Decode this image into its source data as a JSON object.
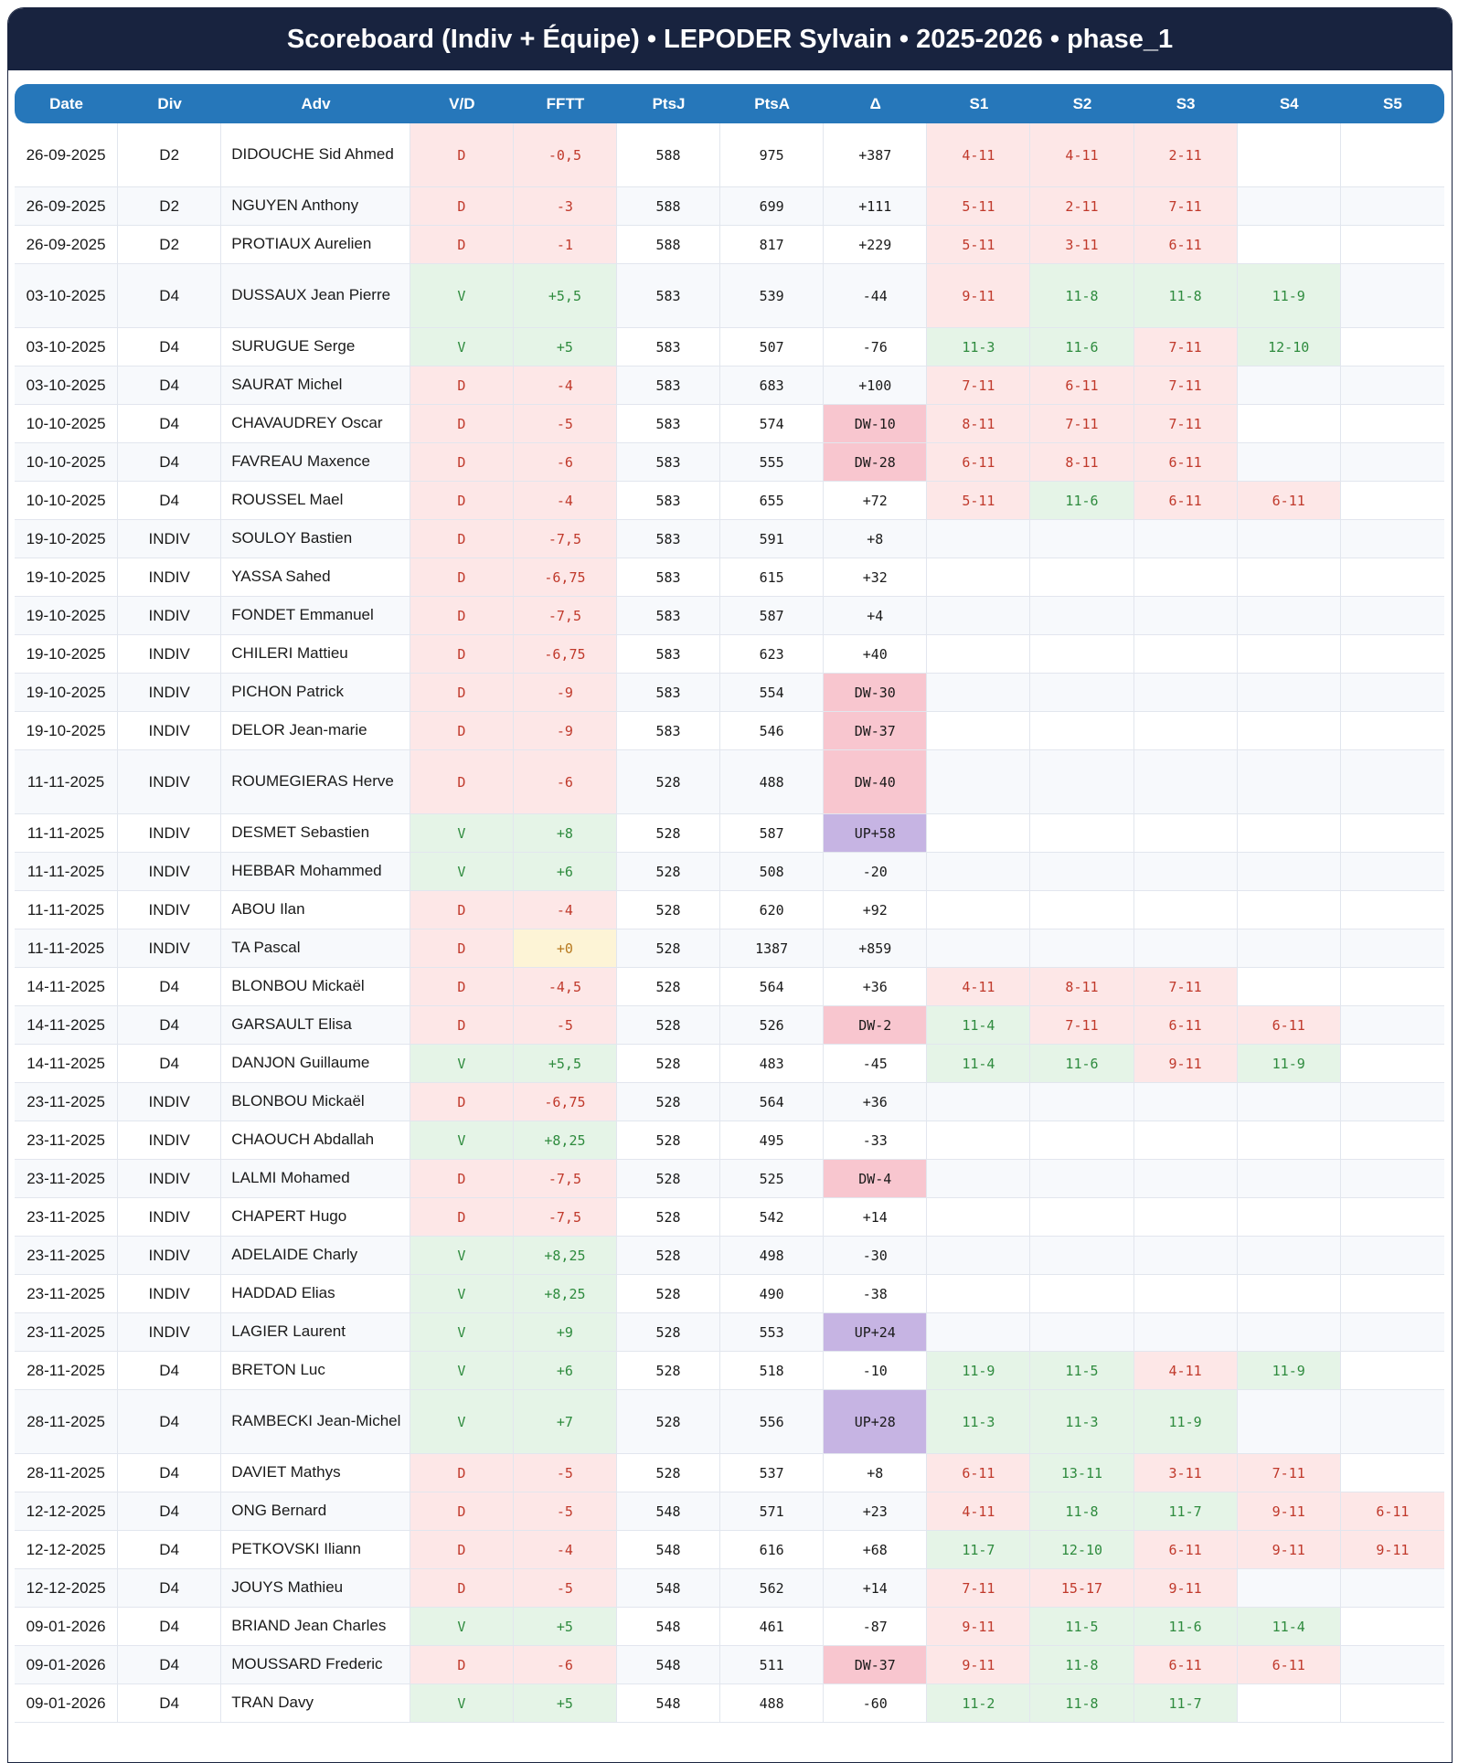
{
  "title": "Scoreboard (Indiv + Équipe) • LEPODER Sylvain • 2025-2026 • phase_1",
  "colors": {
    "title_bg": "#18233f",
    "header_bg": "#2677ba",
    "loss_bg": "#fde7e7",
    "win_bg": "#e5f4e7",
    "dw_bg": "#f8c6cf",
    "up_bg": "#c6b4e3",
    "zero_bg": "#fdf4d6"
  },
  "columns": [
    "Date",
    "Div",
    "Adv",
    "V/D",
    "FFTT",
    "PtsJ",
    "PtsA",
    "Δ",
    "S1",
    "S2",
    "S3",
    "S4",
    "S5"
  ],
  "rows": [
    {
      "date": "26-09-2025",
      "div": "D2",
      "adv": "DIDOUCHE Sid Ahmed",
      "vd": "D",
      "fftt": "-0,5",
      "ptsj": "588",
      "ptsa": "975",
      "delta": "+387",
      "sets": [
        "4-11",
        "4-11",
        "2-11",
        "",
        ""
      ]
    },
    {
      "date": "26-09-2025",
      "div": "D2",
      "adv": "NGUYEN Anthony",
      "vd": "D",
      "fftt": "-3",
      "ptsj": "588",
      "ptsa": "699",
      "delta": "+111",
      "sets": [
        "5-11",
        "2-11",
        "7-11",
        "",
        ""
      ]
    },
    {
      "date": "26-09-2025",
      "div": "D2",
      "adv": "PROTIAUX Aurelien",
      "vd": "D",
      "fftt": "-1",
      "ptsj": "588",
      "ptsa": "817",
      "delta": "+229",
      "sets": [
        "5-11",
        "3-11",
        "6-11",
        "",
        ""
      ]
    },
    {
      "date": "03-10-2025",
      "div": "D4",
      "adv": "DUSSAUX Jean Pierre",
      "vd": "V",
      "fftt": "+5,5",
      "ptsj": "583",
      "ptsa": "539",
      "delta": "-44",
      "sets": [
        "9-11",
        "11-8",
        "11-8",
        "11-9",
        ""
      ]
    },
    {
      "date": "03-10-2025",
      "div": "D4",
      "adv": "SURUGUE Serge",
      "vd": "V",
      "fftt": "+5",
      "ptsj": "583",
      "ptsa": "507",
      "delta": "-76",
      "sets": [
        "11-3",
        "11-6",
        "7-11",
        "12-10",
        ""
      ]
    },
    {
      "date": "03-10-2025",
      "div": "D4",
      "adv": "SAURAT Michel",
      "vd": "D",
      "fftt": "-4",
      "ptsj": "583",
      "ptsa": "683",
      "delta": "+100",
      "sets": [
        "7-11",
        "6-11",
        "7-11",
        "",
        ""
      ]
    },
    {
      "date": "10-10-2025",
      "div": "D4",
      "adv": "CHAVAUDREY Oscar",
      "vd": "D",
      "fftt": "-5",
      "ptsj": "583",
      "ptsa": "574",
      "delta": "DW-10",
      "sets": [
        "8-11",
        "7-11",
        "7-11",
        "",
        ""
      ]
    },
    {
      "date": "10-10-2025",
      "div": "D4",
      "adv": "FAVREAU Maxence",
      "vd": "D",
      "fftt": "-6",
      "ptsj": "583",
      "ptsa": "555",
      "delta": "DW-28",
      "sets": [
        "6-11",
        "8-11",
        "6-11",
        "",
        ""
      ]
    },
    {
      "date": "10-10-2025",
      "div": "D4",
      "adv": "ROUSSEL Mael",
      "vd": "D",
      "fftt": "-4",
      "ptsj": "583",
      "ptsa": "655",
      "delta": "+72",
      "sets": [
        "5-11",
        "11-6",
        "6-11",
        "6-11",
        ""
      ]
    },
    {
      "date": "19-10-2025",
      "div": "INDIV",
      "adv": "SOULOY Bastien",
      "vd": "D",
      "fftt": "-7,5",
      "ptsj": "583",
      "ptsa": "591",
      "delta": "+8",
      "sets": [
        "",
        "",
        "",
        "",
        ""
      ]
    },
    {
      "date": "19-10-2025",
      "div": "INDIV",
      "adv": "YASSA Sahed",
      "vd": "D",
      "fftt": "-6,75",
      "ptsj": "583",
      "ptsa": "615",
      "delta": "+32",
      "sets": [
        "",
        "",
        "",
        "",
        ""
      ]
    },
    {
      "date": "19-10-2025",
      "div": "INDIV",
      "adv": "FONDET Emmanuel",
      "vd": "D",
      "fftt": "-7,5",
      "ptsj": "583",
      "ptsa": "587",
      "delta": "+4",
      "sets": [
        "",
        "",
        "",
        "",
        ""
      ]
    },
    {
      "date": "19-10-2025",
      "div": "INDIV",
      "adv": "CHILERI Mattieu",
      "vd": "D",
      "fftt": "-6,75",
      "ptsj": "583",
      "ptsa": "623",
      "delta": "+40",
      "sets": [
        "",
        "",
        "",
        "",
        ""
      ]
    },
    {
      "date": "19-10-2025",
      "div": "INDIV",
      "adv": "PICHON Patrick",
      "vd": "D",
      "fftt": "-9",
      "ptsj": "583",
      "ptsa": "554",
      "delta": "DW-30",
      "sets": [
        "",
        "",
        "",
        "",
        ""
      ]
    },
    {
      "date": "19-10-2025",
      "div": "INDIV",
      "adv": "DELOR Jean-marie",
      "vd": "D",
      "fftt": "-9",
      "ptsj": "583",
      "ptsa": "546",
      "delta": "DW-37",
      "sets": [
        "",
        "",
        "",
        "",
        ""
      ]
    },
    {
      "date": "11-11-2025",
      "div": "INDIV",
      "adv": "ROUMEGIERAS Herve",
      "vd": "D",
      "fftt": "-6",
      "ptsj": "528",
      "ptsa": "488",
      "delta": "DW-40",
      "sets": [
        "",
        "",
        "",
        "",
        ""
      ]
    },
    {
      "date": "11-11-2025",
      "div": "INDIV",
      "adv": "DESMET Sebastien",
      "vd": "V",
      "fftt": "+8",
      "ptsj": "528",
      "ptsa": "587",
      "delta": "UP+58",
      "sets": [
        "",
        "",
        "",
        "",
        ""
      ]
    },
    {
      "date": "11-11-2025",
      "div": "INDIV",
      "adv": "HEBBAR Mohammed",
      "vd": "V",
      "fftt": "+6",
      "ptsj": "528",
      "ptsa": "508",
      "delta": "-20",
      "sets": [
        "",
        "",
        "",
        "",
        ""
      ]
    },
    {
      "date": "11-11-2025",
      "div": "INDIV",
      "adv": "ABOU Ilan",
      "vd": "D",
      "fftt": "-4",
      "ptsj": "528",
      "ptsa": "620",
      "delta": "+92",
      "sets": [
        "",
        "",
        "",
        "",
        ""
      ]
    },
    {
      "date": "11-11-2025",
      "div": "INDIV",
      "adv": "TA Pascal",
      "vd": "D",
      "fftt": "+0",
      "ptsj": "528",
      "ptsa": "1387",
      "delta": "+859",
      "sets": [
        "",
        "",
        "",
        "",
        ""
      ]
    },
    {
      "date": "14-11-2025",
      "div": "D4",
      "adv": "BLONBOU Mickaël",
      "vd": "D",
      "fftt": "-4,5",
      "ptsj": "528",
      "ptsa": "564",
      "delta": "+36",
      "sets": [
        "4-11",
        "8-11",
        "7-11",
        "",
        ""
      ]
    },
    {
      "date": "14-11-2025",
      "div": "D4",
      "adv": "GARSAULT Elisa",
      "vd": "D",
      "fftt": "-5",
      "ptsj": "528",
      "ptsa": "526",
      "delta": "DW-2",
      "sets": [
        "11-4",
        "7-11",
        "6-11",
        "6-11",
        ""
      ]
    },
    {
      "date": "14-11-2025",
      "div": "D4",
      "adv": "DANJON Guillaume",
      "vd": "V",
      "fftt": "+5,5",
      "ptsj": "528",
      "ptsa": "483",
      "delta": "-45",
      "sets": [
        "11-4",
        "11-6",
        "9-11",
        "11-9",
        ""
      ]
    },
    {
      "date": "23-11-2025",
      "div": "INDIV",
      "adv": "BLONBOU Mickaël",
      "vd": "D",
      "fftt": "-6,75",
      "ptsj": "528",
      "ptsa": "564",
      "delta": "+36",
      "sets": [
        "",
        "",
        "",
        "",
        ""
      ]
    },
    {
      "date": "23-11-2025",
      "div": "INDIV",
      "adv": "CHAOUCH Abdallah",
      "vd": "V",
      "fftt": "+8,25",
      "ptsj": "528",
      "ptsa": "495",
      "delta": "-33",
      "sets": [
        "",
        "",
        "",
        "",
        ""
      ]
    },
    {
      "date": "23-11-2025",
      "div": "INDIV",
      "adv": "LALMI Mohamed",
      "vd": "D",
      "fftt": "-7,5",
      "ptsj": "528",
      "ptsa": "525",
      "delta": "DW-4",
      "sets": [
        "",
        "",
        "",
        "",
        ""
      ]
    },
    {
      "date": "23-11-2025",
      "div": "INDIV",
      "adv": "CHAPERT Hugo",
      "vd": "D",
      "fftt": "-7,5",
      "ptsj": "528",
      "ptsa": "542",
      "delta": "+14",
      "sets": [
        "",
        "",
        "",
        "",
        ""
      ]
    },
    {
      "date": "23-11-2025",
      "div": "INDIV",
      "adv": "ADELAIDE Charly",
      "vd": "V",
      "fftt": "+8,25",
      "ptsj": "528",
      "ptsa": "498",
      "delta": "-30",
      "sets": [
        "",
        "",
        "",
        "",
        ""
      ]
    },
    {
      "date": "23-11-2025",
      "div": "INDIV",
      "adv": "HADDAD Elias",
      "vd": "V",
      "fftt": "+8,25",
      "ptsj": "528",
      "ptsa": "490",
      "delta": "-38",
      "sets": [
        "",
        "",
        "",
        "",
        ""
      ]
    },
    {
      "date": "23-11-2025",
      "div": "INDIV",
      "adv": "LAGIER Laurent",
      "vd": "V",
      "fftt": "+9",
      "ptsj": "528",
      "ptsa": "553",
      "delta": "UP+24",
      "sets": [
        "",
        "",
        "",
        "",
        ""
      ]
    },
    {
      "date": "28-11-2025",
      "div": "D4",
      "adv": "BRETON Luc",
      "vd": "V",
      "fftt": "+6",
      "ptsj": "528",
      "ptsa": "518",
      "delta": "-10",
      "sets": [
        "11-9",
        "11-5",
        "4-11",
        "11-9",
        ""
      ]
    },
    {
      "date": "28-11-2025",
      "div": "D4",
      "adv": "RAMBECKI Jean-Michel",
      "vd": "V",
      "fftt": "+7",
      "ptsj": "528",
      "ptsa": "556",
      "delta": "UP+28",
      "sets": [
        "11-3",
        "11-3",
        "11-9",
        "",
        ""
      ]
    },
    {
      "date": "28-11-2025",
      "div": "D4",
      "adv": "DAVIET Mathys",
      "vd": "D",
      "fftt": "-5",
      "ptsj": "528",
      "ptsa": "537",
      "delta": "+8",
      "sets": [
        "6-11",
        "13-11",
        "3-11",
        "7-11",
        ""
      ]
    },
    {
      "date": "12-12-2025",
      "div": "D4",
      "adv": "ONG Bernard",
      "vd": "D",
      "fftt": "-5",
      "ptsj": "548",
      "ptsa": "571",
      "delta": "+23",
      "sets": [
        "4-11",
        "11-8",
        "11-7",
        "9-11",
        "6-11"
      ]
    },
    {
      "date": "12-12-2025",
      "div": "D4",
      "adv": "PETKOVSKI Iliann",
      "vd": "D",
      "fftt": "-4",
      "ptsj": "548",
      "ptsa": "616",
      "delta": "+68",
      "sets": [
        "11-7",
        "12-10",
        "6-11",
        "9-11",
        "9-11"
      ]
    },
    {
      "date": "12-12-2025",
      "div": "D4",
      "adv": "JOUYS Mathieu",
      "vd": "D",
      "fftt": "-5",
      "ptsj": "548",
      "ptsa": "562",
      "delta": "+14",
      "sets": [
        "7-11",
        "15-17",
        "9-11",
        "",
        ""
      ]
    },
    {
      "date": "09-01-2026",
      "div": "D4",
      "adv": "BRIAND Jean Charles",
      "vd": "V",
      "fftt": "+5",
      "ptsj": "548",
      "ptsa": "461",
      "delta": "-87",
      "sets": [
        "9-11",
        "11-5",
        "11-6",
        "11-4",
        ""
      ]
    },
    {
      "date": "09-01-2026",
      "div": "D4",
      "adv": "MOUSSARD Frederic",
      "vd": "D",
      "fftt": "-6",
      "ptsj": "548",
      "ptsa": "511",
      "delta": "DW-37",
      "sets": [
        "9-11",
        "11-8",
        "6-11",
        "6-11",
        ""
      ]
    },
    {
      "date": "09-01-2026",
      "div": "D4",
      "adv": "TRAN Davy",
      "vd": "V",
      "fftt": "+5",
      "ptsj": "548",
      "ptsa": "488",
      "delta": "-60",
      "sets": [
        "11-2",
        "11-8",
        "11-7",
        "",
        ""
      ]
    }
  ]
}
